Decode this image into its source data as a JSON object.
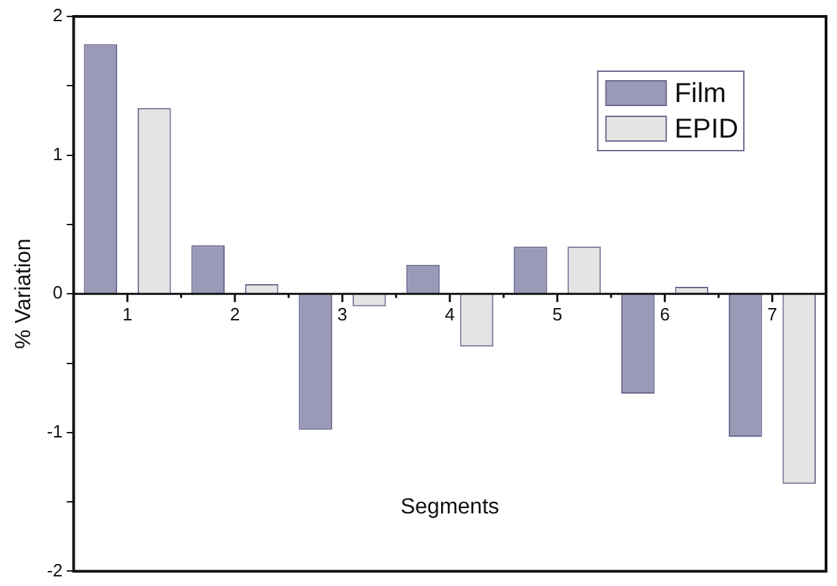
{
  "chart_data": {
    "type": "bar",
    "xlabel": "Segments",
    "ylabel": "% Variation",
    "categories": [
      "1",
      "2",
      "3",
      "4",
      "5",
      "6",
      "7"
    ],
    "series": [
      {
        "name": "Film",
        "color": "#9a9ab8",
        "values": [
          1.8,
          0.35,
          -0.98,
          0.21,
          0.34,
          -0.72,
          -1.03
        ]
      },
      {
        "name": "EPID",
        "color": "#e4e4e4",
        "values": [
          1.34,
          0.07,
          -0.09,
          -0.38,
          0.34,
          0.05,
          -1.37
        ]
      }
    ],
    "ylim": [
      -2,
      2
    ],
    "yticks": [
      -2,
      {
        "value": -1.5,
        "label": null
      },
      -1,
      {
        "value": -0.5,
        "label": null
      },
      0,
      {
        "value": 0.5,
        "label": null
      },
      1,
      {
        "value": 1.5,
        "label": null
      },
      2
    ],
    "legend": "top right",
    "grid": false
  }
}
